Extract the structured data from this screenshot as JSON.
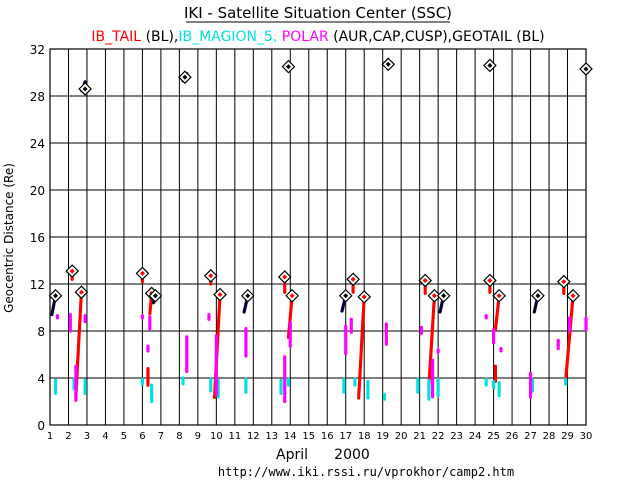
{
  "header": {
    "title": "IKI - Satellite Situation Center (SSC)",
    "legend_parts": [
      {
        "text": "IB_TAIL",
        "color": "#ff0000"
      },
      {
        "text": " (BL),",
        "color": "#000000"
      },
      {
        "text": "IB_MAGION_5,",
        "color": "#00e0e0"
      },
      {
        "text": " POLAR",
        "color": "#ff00ff"
      },
      {
        "text": " (AUR,CAP,CUSP),",
        "color": "#000000"
      },
      {
        "text": "GEOTAIL",
        "color": "#000000"
      },
      {
        "text": " (BL)",
        "color": "#000000"
      }
    ]
  },
  "footer": {
    "month_label": "April",
    "year_label": "2000",
    "url": "http://www.iki.rssi.ru/vprokhor/camp2.htm"
  },
  "chart_data": {
    "type": "scatter",
    "ylabel": "Geocentric Distance (Re)",
    "xlabel": "April 2000",
    "ylim": [
      0,
      32
    ],
    "xlim": [
      1,
      30
    ],
    "yticks": [
      0,
      4,
      8,
      12,
      16,
      20,
      24,
      28,
      32
    ],
    "xticks": [
      1,
      2,
      3,
      4,
      5,
      6,
      7,
      8,
      9,
      10,
      11,
      12,
      13,
      14,
      15,
      16,
      17,
      18,
      19,
      20,
      21,
      22,
      23,
      24,
      25,
      26,
      27,
      28,
      29,
      30
    ],
    "grid": true,
    "series": [
      {
        "name": "IB_TAIL",
        "color": "#ff0000",
        "segments": [
          {
            "x0": 2.2,
            "y0": 13.1,
            "x1": 2.2,
            "y1": 12.4
          },
          {
            "x0": 2.7,
            "y0": 11.3,
            "x1": 2.4,
            "y1": 2.5
          },
          {
            "x0": 6.0,
            "y0": 12.9,
            "x1": 6.0,
            "y1": 12.2
          },
          {
            "x0": 6.3,
            "y0": 4.8,
            "x1": 6.3,
            "y1": 3.3
          },
          {
            "x0": 6.5,
            "y0": 11.2,
            "x1": 6.4,
            "y1": 9.4
          },
          {
            "x0": 9.7,
            "y0": 12.7,
            "x1": 9.7,
            "y1": 12.0
          },
          {
            "x0": 10.2,
            "y0": 11.1,
            "x1": 9.9,
            "y1": 2.3
          },
          {
            "x0": 13.7,
            "y0": 12.6,
            "x1": 13.7,
            "y1": 11.3
          },
          {
            "x0": 14.1,
            "y0": 11.0,
            "x1": 13.9,
            "y1": 7.4
          },
          {
            "x0": 17.4,
            "y0": 12.4,
            "x1": 17.4,
            "y1": 11.3
          },
          {
            "x0": 18.0,
            "y0": 10.9,
            "x1": 17.7,
            "y1": 2.3
          },
          {
            "x0": 21.3,
            "y0": 12.3,
            "x1": 21.3,
            "y1": 11.2
          },
          {
            "x0": 21.8,
            "y0": 11.0,
            "x1": 21.5,
            "y1": 3.3
          },
          {
            "x0": 24.8,
            "y0": 12.3,
            "x1": 24.8,
            "y1": 11.3
          },
          {
            "x0": 25.3,
            "y0": 11.0,
            "x1": 25.1,
            "y1": 8.1
          },
          {
            "x0": 25.1,
            "y0": 5.0,
            "x1": 25.1,
            "y1": 3.7
          },
          {
            "x0": 28.8,
            "y0": 12.2,
            "x1": 28.8,
            "y1": 11.2
          },
          {
            "x0": 29.3,
            "y0": 11.0,
            "x1": 28.9,
            "y1": 3.8
          }
        ],
        "markers": [
          {
            "x": 2.2,
            "y": 13.1
          },
          {
            "x": 2.7,
            "y": 11.3
          },
          {
            "x": 6.0,
            "y": 12.9
          },
          {
            "x": 6.5,
            "y": 11.2
          },
          {
            "x": 9.7,
            "y": 12.7
          },
          {
            "x": 10.2,
            "y": 11.1
          },
          {
            "x": 13.7,
            "y": 12.6
          },
          {
            "x": 14.1,
            "y": 11.0
          },
          {
            "x": 17.4,
            "y": 12.4
          },
          {
            "x": 18.0,
            "y": 10.9
          },
          {
            "x": 21.3,
            "y": 12.3
          },
          {
            "x": 21.8,
            "y": 11.0
          },
          {
            "x": 24.8,
            "y": 12.3
          },
          {
            "x": 25.3,
            "y": 11.0
          },
          {
            "x": 28.8,
            "y": 12.2
          },
          {
            "x": 29.3,
            "y": 11.0
          }
        ]
      },
      {
        "name": "IB_MAGION_5",
        "color": "#00e0e0",
        "segments": [
          {
            "x0": 1.3,
            "y0": 3.8,
            "x1": 1.3,
            "y1": 2.6
          },
          {
            "x0": 2.3,
            "y0": 3.9,
            "x1": 2.3,
            "y1": 3.0
          },
          {
            "x0": 2.9,
            "y0": 3.8,
            "x1": 2.9,
            "y1": 2.6
          },
          {
            "x0": 6.0,
            "y0": 3.9,
            "x1": 6.0,
            "y1": 3.5
          },
          {
            "x0": 6.5,
            "y0": 3.4,
            "x1": 6.5,
            "y1": 1.9
          },
          {
            "x0": 8.2,
            "y0": 4.0,
            "x1": 8.2,
            "y1": 3.5
          },
          {
            "x0": 9.7,
            "y0": 3.9,
            "x1": 9.7,
            "y1": 2.9
          },
          {
            "x0": 10.1,
            "y0": 3.8,
            "x1": 10.1,
            "y1": 2.4
          },
          {
            "x0": 11.6,
            "y0": 3.9,
            "x1": 11.6,
            "y1": 2.8
          },
          {
            "x0": 13.5,
            "y0": 3.8,
            "x1": 13.5,
            "y1": 2.6
          },
          {
            "x0": 13.9,
            "y0": 3.9,
            "x1": 13.9,
            "y1": 3.3
          },
          {
            "x0": 16.9,
            "y0": 3.9,
            "x1": 16.9,
            "y1": 2.7
          },
          {
            "x0": 17.5,
            "y0": 3.9,
            "x1": 17.5,
            "y1": 3.4
          },
          {
            "x0": 18.2,
            "y0": 3.7,
            "x1": 18.2,
            "y1": 2.3
          },
          {
            "x0": 19.1,
            "y0": 2.6,
            "x1": 19.1,
            "y1": 2.2
          },
          {
            "x0": 20.9,
            "y0": 3.9,
            "x1": 20.9,
            "y1": 2.7
          },
          {
            "x0": 21.5,
            "y0": 3.8,
            "x1": 21.5,
            "y1": 2.2
          },
          {
            "x0": 22.0,
            "y0": 3.9,
            "x1": 22.0,
            "y1": 2.5
          },
          {
            "x0": 24.6,
            "y0": 3.9,
            "x1": 24.6,
            "y1": 3.3
          },
          {
            "x0": 25.0,
            "y0": 3.7,
            "x1": 25.0,
            "y1": 3.2
          },
          {
            "x0": 25.3,
            "y0": 3.6,
            "x1": 25.3,
            "y1": 2.4
          },
          {
            "x0": 27.1,
            "y0": 3.9,
            "x1": 27.1,
            "y1": 2.9
          },
          {
            "x0": 28.9,
            "y0": 3.9,
            "x1": 28.9,
            "y1": 3.5
          }
        ],
        "markers": []
      },
      {
        "name": "POLAR",
        "color": "#ff00ff",
        "segments": [
          {
            "x0": 1.4,
            "y0": 9.3,
            "x1": 1.4,
            "y1": 9.1
          },
          {
            "x0": 2.1,
            "y0": 9.4,
            "x1": 2.1,
            "y1": 8.0
          },
          {
            "x0": 2.4,
            "y0": 5.0,
            "x1": 2.4,
            "y1": 2.1
          },
          {
            "x0": 2.9,
            "y0": 9.3,
            "x1": 2.9,
            "y1": 8.7
          },
          {
            "x0": 6.0,
            "y0": 9.3,
            "x1": 6.0,
            "y1": 9.1
          },
          {
            "x0": 6.4,
            "y0": 9.2,
            "x1": 6.4,
            "y1": 8.2
          },
          {
            "x0": 6.3,
            "y0": 6.7,
            "x1": 6.3,
            "y1": 6.3
          },
          {
            "x0": 8.4,
            "y0": 7.5,
            "x1": 8.4,
            "y1": 4.5
          },
          {
            "x0": 9.6,
            "y0": 9.4,
            "x1": 9.6,
            "y1": 9.0
          },
          {
            "x0": 10.0,
            "y0": 7.6,
            "x1": 10.0,
            "y1": 2.6
          },
          {
            "x0": 11.6,
            "y0": 8.2,
            "x1": 11.6,
            "y1": 5.8
          },
          {
            "x0": 13.7,
            "y0": 5.8,
            "x1": 13.7,
            "y1": 2.0
          },
          {
            "x0": 14.0,
            "y0": 8.7,
            "x1": 14.0,
            "y1": 6.7
          },
          {
            "x0": 17.0,
            "y0": 8.4,
            "x1": 17.0,
            "y1": 6.0
          },
          {
            "x0": 17.3,
            "y0": 9.0,
            "x1": 17.3,
            "y1": 7.8
          },
          {
            "x0": 19.2,
            "y0": 8.6,
            "x1": 19.2,
            "y1": 6.8
          },
          {
            "x0": 21.1,
            "y0": 8.3,
            "x1": 21.1,
            "y1": 7.7
          },
          {
            "x0": 21.7,
            "y0": 5.5,
            "x1": 21.7,
            "y1": 2.4
          },
          {
            "x0": 22.0,
            "y0": 6.4,
            "x1": 22.0,
            "y1": 6.1
          },
          {
            "x0": 24.6,
            "y0": 9.3,
            "x1": 24.6,
            "y1": 9.0
          },
          {
            "x0": 25.0,
            "y0": 8.1,
            "x1": 25.0,
            "y1": 6.9
          },
          {
            "x0": 25.4,
            "y0": 6.5,
            "x1": 25.4,
            "y1": 6.2
          },
          {
            "x0": 27.0,
            "y0": 4.4,
            "x1": 27.0,
            "y1": 2.3
          },
          {
            "x0": 28.5,
            "y0": 7.2,
            "x1": 28.5,
            "y1": 6.5
          },
          {
            "x0": 29.1,
            "y0": 9.1,
            "x1": 29.1,
            "y1": 8.0
          },
          {
            "x0": 30.0,
            "y0": 9.1,
            "x1": 30.0,
            "y1": 8.1
          }
        ],
        "markers": []
      },
      {
        "name": "GEOTAIL",
        "color": "#000033",
        "segments": [
          {
            "x0": 1.3,
            "y0": 11.0,
            "x1": 1.1,
            "y1": 9.4
          },
          {
            "x0": 2.9,
            "y0": 29.2,
            "x1": 2.7,
            "y1": 28.4
          },
          {
            "x0": 6.7,
            "y0": 11.0,
            "x1": 6.6,
            "y1": 10.4
          },
          {
            "x0": 8.4,
            "y0": 29.9,
            "x1": 8.2,
            "y1": 29.3
          },
          {
            "x0": 11.7,
            "y0": 11.0,
            "x1": 11.5,
            "y1": 9.6
          },
          {
            "x0": 13.9,
            "y0": 30.6,
            "x1": 13.9,
            "y1": 30.3
          },
          {
            "x0": 17.0,
            "y0": 11.0,
            "x1": 16.8,
            "y1": 9.7
          },
          {
            "x0": 19.3,
            "y0": 30.8,
            "x1": 19.3,
            "y1": 30.5
          },
          {
            "x0": 22.3,
            "y0": 11.0,
            "x1": 22.1,
            "y1": 9.6
          },
          {
            "x0": 24.8,
            "y0": 30.7,
            "x1": 24.8,
            "y1": 30.4
          },
          {
            "x0": 27.4,
            "y0": 11.0,
            "x1": 27.2,
            "y1": 9.6
          },
          {
            "x0": 30.0,
            "y0": 30.4,
            "x1": 30.0,
            "y1": 30.1
          }
        ],
        "markers": [
          {
            "x": 1.3,
            "y": 11.0
          },
          {
            "x": 2.9,
            "y": 28.6
          },
          {
            "x": 6.7,
            "y": 11.0
          },
          {
            "x": 8.3,
            "y": 29.6
          },
          {
            "x": 11.7,
            "y": 11.0
          },
          {
            "x": 13.9,
            "y": 30.5
          },
          {
            "x": 17.0,
            "y": 11.0
          },
          {
            "x": 19.3,
            "y": 30.7
          },
          {
            "x": 22.3,
            "y": 11.0
          },
          {
            "x": 24.8,
            "y": 30.6
          },
          {
            "x": 27.4,
            "y": 11.0
          },
          {
            "x": 30.0,
            "y": 30.3
          }
        ]
      }
    ]
  }
}
